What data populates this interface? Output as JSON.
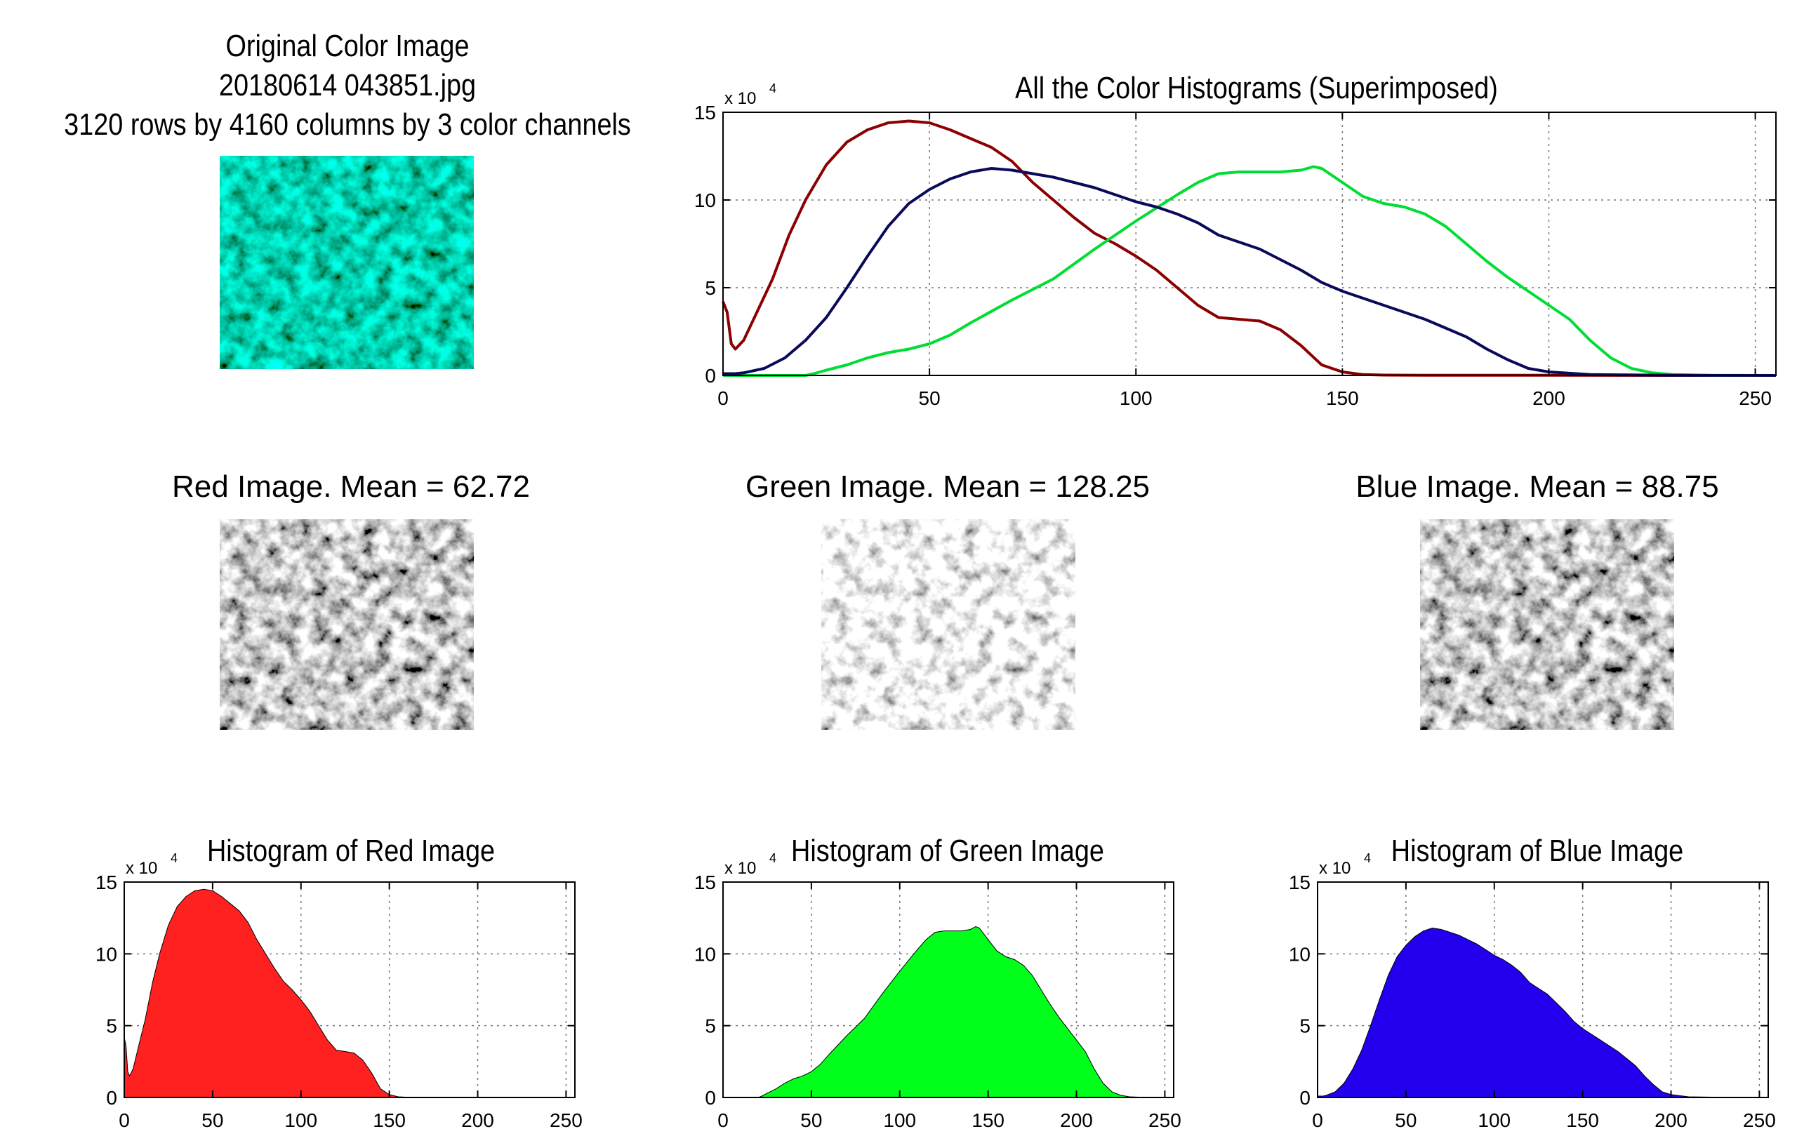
{
  "original": {
    "title_line1": "Original Color Image",
    "title_line2": "20180614 043851.jpg",
    "title_line3": "3120 rows by 4160 columns by 3 color channels"
  },
  "channels": {
    "red_title": "Red Image.  Mean =  62.72",
    "green_title": "Green Image.  Mean = 128.25",
    "blue_title": "Blue Image.  Mean =  88.75"
  },
  "colors": {
    "red_line": "#8b0000",
    "green_line": "#00dd33",
    "blue_line": "#0a0a5a",
    "red_fill": "#ff2020",
    "green_fill": "#00ff1a",
    "blue_fill": "#2200ee"
  },
  "chart_data": [
    {
      "id": "superimposed",
      "type": "line",
      "title": "All the Color Histograms (Superimposed)",
      "exponent_label": "x 10",
      "exponent_power": "4",
      "xlim": [
        0,
        255
      ],
      "ylim": [
        0,
        15
      ],
      "xticks": [
        0,
        50,
        100,
        150,
        200,
        250
      ],
      "yticks": [
        0,
        5,
        10,
        15
      ],
      "grid": true,
      "series": [
        {
          "name": "Red",
          "x": [
            0,
            1,
            2,
            3,
            5,
            8,
            12,
            16,
            20,
            25,
            30,
            35,
            40,
            45,
            50,
            55,
            60,
            65,
            70,
            75,
            80,
            85,
            90,
            95,
            100,
            105,
            110,
            115,
            120,
            125,
            130,
            135,
            140,
            145,
            150,
            155,
            160,
            170,
            180,
            200,
            230,
            255
          ],
          "values": [
            4.2,
            3.6,
            1.8,
            1.5,
            2.0,
            3.5,
            5.5,
            8.0,
            10.0,
            12.0,
            13.3,
            14.0,
            14.4,
            14.5,
            14.4,
            14.0,
            13.5,
            13.0,
            12.2,
            11.0,
            10.0,
            9.0,
            8.1,
            7.5,
            6.8,
            6.0,
            5.0,
            4.0,
            3.3,
            3.2,
            3.1,
            2.6,
            1.7,
            0.6,
            0.2,
            0.05,
            0.02,
            0.01,
            0.01,
            0.01,
            0.0,
            0.0
          ]
        },
        {
          "name": "Green",
          "x": [
            0,
            10,
            20,
            22,
            25,
            30,
            35,
            40,
            45,
            50,
            55,
            60,
            70,
            80,
            90,
            100,
            110,
            115,
            120,
            125,
            130,
            135,
            140,
            143,
            145,
            150,
            155,
            160,
            165,
            170,
            175,
            180,
            185,
            190,
            195,
            200,
            205,
            210,
            215,
            220,
            225,
            230,
            240,
            255
          ],
          "values": [
            0.0,
            0.0,
            0.0,
            0.1,
            0.3,
            0.6,
            1.0,
            1.3,
            1.5,
            1.8,
            2.3,
            3.0,
            4.3,
            5.5,
            7.2,
            8.8,
            10.3,
            11.0,
            11.5,
            11.6,
            11.6,
            11.6,
            11.7,
            11.9,
            11.8,
            11.0,
            10.2,
            9.8,
            9.6,
            9.2,
            8.5,
            7.5,
            6.5,
            5.6,
            4.8,
            4.0,
            3.2,
            2.0,
            1.0,
            0.4,
            0.15,
            0.05,
            0.0,
            0.0
          ]
        },
        {
          "name": "Blue",
          "x": [
            0,
            3,
            5,
            10,
            15,
            20,
            25,
            30,
            35,
            40,
            45,
            50,
            55,
            60,
            65,
            70,
            75,
            80,
            85,
            90,
            95,
            100,
            105,
            110,
            115,
            120,
            125,
            130,
            135,
            140,
            145,
            150,
            155,
            160,
            165,
            170,
            175,
            180,
            185,
            190,
            195,
            200,
            210,
            230,
            255
          ],
          "values": [
            0.1,
            0.1,
            0.15,
            0.4,
            1.0,
            2.0,
            3.3,
            5.0,
            6.8,
            8.5,
            9.8,
            10.6,
            11.2,
            11.6,
            11.8,
            11.7,
            11.5,
            11.3,
            11.0,
            10.7,
            10.3,
            9.9,
            9.6,
            9.2,
            8.7,
            8.0,
            7.6,
            7.2,
            6.6,
            6.0,
            5.3,
            4.8,
            4.4,
            4.0,
            3.6,
            3.2,
            2.7,
            2.2,
            1.5,
            0.9,
            0.4,
            0.2,
            0.05,
            0.01,
            0.0
          ]
        }
      ]
    },
    {
      "id": "red-hist",
      "type": "area",
      "title": "Histogram of Red Image",
      "exponent_label": "x 10",
      "exponent_power": "4",
      "xlim": [
        0,
        255
      ],
      "ylim": [
        0,
        15
      ],
      "xticks": [
        0,
        50,
        100,
        150,
        200,
        250
      ],
      "yticks": [
        0,
        5,
        10,
        15
      ],
      "grid": true,
      "x": [
        0,
        1,
        2,
        3,
        5,
        8,
        12,
        16,
        20,
        25,
        30,
        35,
        40,
        45,
        50,
        55,
        60,
        65,
        70,
        75,
        80,
        85,
        90,
        95,
        100,
        105,
        110,
        115,
        120,
        125,
        130,
        135,
        140,
        145,
        150,
        155,
        160,
        170,
        180,
        200,
        230,
        255
      ],
      "values": [
        4.2,
        3.6,
        1.8,
        1.5,
        2.0,
        3.5,
        5.5,
        8.0,
        10.0,
        12.0,
        13.3,
        14.0,
        14.4,
        14.5,
        14.4,
        14.0,
        13.5,
        13.0,
        12.2,
        11.0,
        10.0,
        9.0,
        8.1,
        7.5,
        6.8,
        6.0,
        5.0,
        4.0,
        3.3,
        3.2,
        3.1,
        2.6,
        1.7,
        0.6,
        0.2,
        0.05,
        0.02,
        0.01,
        0.01,
        0.01,
        0.0,
        0.0
      ]
    },
    {
      "id": "green-hist",
      "type": "area",
      "title": "Histogram of Green Image",
      "exponent_label": "x 10",
      "exponent_power": "4",
      "xlim": [
        0,
        255
      ],
      "ylim": [
        0,
        15
      ],
      "xticks": [
        0,
        50,
        100,
        150,
        200,
        250
      ],
      "yticks": [
        0,
        5,
        10,
        15
      ],
      "grid": true,
      "x": [
        0,
        10,
        20,
        22,
        25,
        30,
        35,
        40,
        45,
        50,
        55,
        60,
        70,
        80,
        90,
        100,
        110,
        115,
        120,
        125,
        130,
        135,
        140,
        143,
        145,
        150,
        155,
        160,
        165,
        170,
        175,
        180,
        185,
        190,
        195,
        200,
        205,
        210,
        215,
        220,
        225,
        230,
        240,
        255
      ],
      "values": [
        0.0,
        0.0,
        0.0,
        0.1,
        0.3,
        0.6,
        1.0,
        1.3,
        1.5,
        1.8,
        2.3,
        3.0,
        4.3,
        5.5,
        7.2,
        8.8,
        10.3,
        11.0,
        11.5,
        11.6,
        11.6,
        11.6,
        11.7,
        11.9,
        11.8,
        11.0,
        10.2,
        9.8,
        9.6,
        9.2,
        8.5,
        7.5,
        6.5,
        5.6,
        4.8,
        4.0,
        3.2,
        2.0,
        1.0,
        0.4,
        0.15,
        0.05,
        0.0,
        0.0
      ]
    },
    {
      "id": "blue-hist",
      "type": "area",
      "title": "Histogram of Blue Image",
      "exponent_label": "x 10",
      "exponent_power": "4",
      "xlim": [
        0,
        255
      ],
      "ylim": [
        0,
        15
      ],
      "xticks": [
        0,
        50,
        100,
        150,
        200,
        250
      ],
      "yticks": [
        0,
        5,
        10,
        15
      ],
      "grid": true,
      "x": [
        0,
        3,
        5,
        10,
        15,
        20,
        25,
        30,
        35,
        40,
        45,
        50,
        55,
        60,
        65,
        70,
        75,
        80,
        85,
        90,
        95,
        100,
        105,
        110,
        115,
        120,
        125,
        130,
        135,
        140,
        145,
        150,
        155,
        160,
        165,
        170,
        175,
        180,
        185,
        190,
        195,
        200,
        210,
        230,
        255
      ],
      "values": [
        0.1,
        0.1,
        0.15,
        0.4,
        1.0,
        2.0,
        3.3,
        5.0,
        6.8,
        8.5,
        9.8,
        10.6,
        11.2,
        11.6,
        11.8,
        11.7,
        11.5,
        11.3,
        11.0,
        10.7,
        10.3,
        9.9,
        9.6,
        9.2,
        8.7,
        8.0,
        7.6,
        7.2,
        6.6,
        6.0,
        5.3,
        4.8,
        4.4,
        4.0,
        3.6,
        3.2,
        2.7,
        2.2,
        1.5,
        0.9,
        0.4,
        0.2,
        0.05,
        0.01,
        0.0
      ]
    }
  ]
}
